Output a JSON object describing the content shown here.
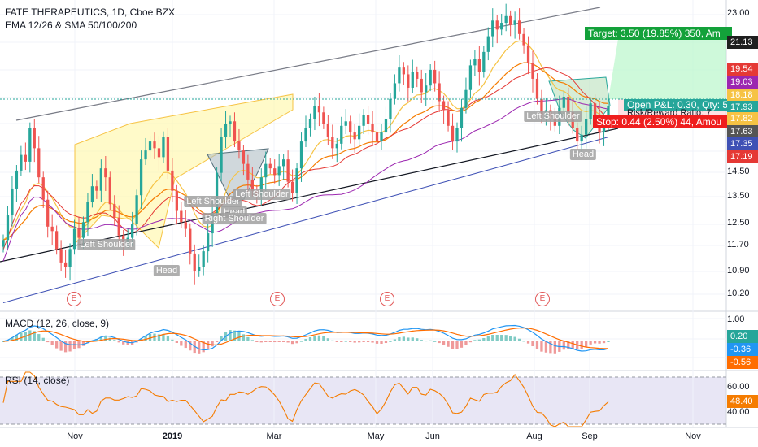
{
  "header": {
    "title": "FATE THERAPEUTICS, 1D, Cboe BZX",
    "indicators": "EMA 12/26 & SMA 50/100/200"
  },
  "panes": {
    "macd_title": "MACD (12, 26, close, 9)",
    "rsi_title": "RSI (14, close)"
  },
  "price_axis": {
    "ticks": [
      "23.00",
      "21.13",
      "19.54",
      "19.03",
      "18.18",
      "17.93",
      "17.82",
      "17.63",
      "17.35",
      "17.19",
      "14.50",
      "13.50",
      "12.50",
      "11.70",
      "10.90",
      "10.20"
    ],
    "badges": [
      {
        "text": "19.54",
        "color": "#e53935"
      },
      {
        "text": "19.03",
        "color": "#9c27b0"
      },
      {
        "text": "18.18",
        "color": "#f6c344"
      },
      {
        "text": "17.93",
        "color": "#26a69a"
      },
      {
        "text": "17.82",
        "color": "#f6c344"
      },
      {
        "text": "17.63",
        "color": "#555555"
      },
      {
        "text": "17.35",
        "color": "#3f51b5"
      },
      {
        "text": "17.19",
        "color": "#e53935"
      }
    ]
  },
  "macd_axis": {
    "ticks": [
      "1.00",
      "0.20",
      "-0.36",
      "-0.56"
    ]
  },
  "rsi_axis": {
    "ticks": [
      "60.00",
      "48.40",
      "40.00"
    ]
  },
  "x_axis": {
    "labels": [
      "Nov",
      "2019",
      "Mar",
      "May",
      "Jun",
      "Aug",
      "Sep",
      "Nov"
    ]
  },
  "patterns": {
    "labels": [
      "Left Shoulder",
      "Head",
      "Left Shoulder",
      "Head",
      "Right Shoulder",
      "Left Shoulder",
      "Left Shoulder",
      "Head"
    ]
  },
  "earnings": {
    "marker": "E"
  },
  "trade": {
    "target": "Target: 3.50 (19.85%) 350, Am",
    "open_pl": "Open P&L: 0.30, Qty: 5",
    "risk_reward": "Risk/Reward Ratio: 7",
    "stop": "Stop: 0.44 (2.50%) 44, Amou"
  },
  "colors": {
    "up": "#26a69a",
    "down": "#ef5350",
    "ema12": "#f6c344",
    "ema26": "#f57c00",
    "sma50": "#e53935",
    "sma100": "#9c27b0",
    "sma200": "#3f51b5",
    "macd_line": "#2196f3",
    "signal_line": "#ff6d00",
    "rsi_line": "#f57c00"
  },
  "chart_data": {
    "type": "candlestick",
    "series_range": {
      "start": "2018-10-01",
      "end": "2019-09-10"
    },
    "ylim": [
      9.8,
      23.3
    ],
    "closes": [
      12.8,
      13.9,
      15.1,
      15.9,
      16.6,
      16.3,
      17.8,
      16.9,
      15.6,
      14.6,
      13.4,
      13.2,
      12.4,
      11.8,
      11.6,
      12.4,
      13.3,
      12.9,
      13.6,
      14.5,
      15.2,
      15.0,
      16.0,
      15.6,
      14.4,
      13.8,
      13.0,
      12.7,
      12.9,
      13.5,
      14.8,
      16.4,
      16.8,
      17.2,
      16.9,
      16.5,
      17.4,
      15.9,
      15.0,
      14.1,
      13.6,
      13.3,
      12.2,
      11.4,
      11.6,
      12.3,
      13.1,
      14.0,
      15.8,
      17.4,
      18.0,
      18.1,
      17.2,
      16.8,
      16.2,
      15.5,
      15.0,
      14.8,
      15.6,
      16.2,
      16.0,
      15.7,
      16.1,
      16.4,
      15.4,
      14.9,
      16.0,
      17.2,
      17.8,
      18.2,
      18.8,
      18.5,
      18.0,
      17.4,
      16.9,
      17.1,
      17.9,
      18.1,
      17.6,
      17.3,
      17.9,
      18.4,
      18.0,
      17.6,
      17.2,
      17.6,
      18.2,
      19.1,
      19.8,
      20.5,
      20.2,
      19.6,
      20.3,
      20.0,
      19.4,
      19.7,
      20.4,
      19.8,
      19.0,
      18.6,
      17.9,
      17.2,
      17.8,
      18.7,
      19.5,
      20.6,
      20.9,
      20.3,
      21.2,
      21.9,
      22.6,
      22.2,
      22.5,
      22.8,
      22.4,
      22.6,
      22.0,
      21.5,
      20.7,
      20.0,
      19.1,
      18.4,
      18.6,
      18.3,
      17.9,
      18.7,
      19.2,
      18.5,
      17.8,
      17.2,
      17.5,
      18.2,
      18.9,
      18.4,
      17.6,
      17.9,
      18.8
    ]
  }
}
